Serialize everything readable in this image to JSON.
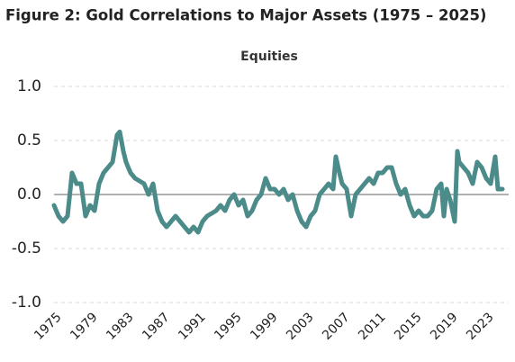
{
  "chart_data": {
    "type": "line",
    "title": "Figure 2: Gold Correlations to Major Assets (1975 – 2025)",
    "subtitle": "Equities",
    "x": [
      1975,
      1975.5,
      1976,
      1976.5,
      1977,
      1977.5,
      1978,
      1978.5,
      1979,
      1979.5,
      1980,
      1980.5,
      1981,
      1981.5,
      1982,
      1982.3,
      1982.7,
      1983,
      1983.5,
      1984,
      1985,
      1985.5,
      1986,
      1986.5,
      1987,
      1987.5,
      1988,
      1988.5,
      1989,
      1989.5,
      1990,
      1990.5,
      1991,
      1991.5,
      1992,
      1993,
      1993.5,
      1994,
      1994.5,
      1995,
      1995.5,
      1996,
      1996.5,
      1997,
      1997.5,
      1998,
      1998.5,
      1999,
      1999.5,
      2000,
      2000.5,
      2001,
      2001.5,
      2002,
      2002.5,
      2003,
      2003.5,
      2004,
      2004.5,
      2005,
      2005.5,
      2006,
      2006.3,
      2006.7,
      2007,
      2007.5,
      2008,
      2008.5,
      2009,
      2009.5,
      2010,
      2010.5,
      2011,
      2011.5,
      2012,
      2012.5,
      2013,
      2013.5,
      2014,
      2014.5,
      2015,
      2015.5,
      2016,
      2016.5,
      2017,
      2017.5,
      2018,
      2018.3,
      2018.6,
      2019,
      2019.5,
      2019.8,
      2020,
      2020.5,
      2021,
      2021.5,
      2022,
      2022.5,
      2023,
      2023.5,
      2024,
      2024.3,
      2024.8
    ],
    "series": [
      {
        "color": "#4b8b8a",
        "values": [
          -0.1,
          -0.2,
          -0.25,
          -0.2,
          0.2,
          0.1,
          0.1,
          -0.2,
          -0.1,
          -0.15,
          0.1,
          0.2,
          0.25,
          0.3,
          0.55,
          0.58,
          0.4,
          0.3,
          0.2,
          0.15,
          0.1,
          0.0,
          0.1,
          -0.15,
          -0.25,
          -0.3,
          -0.25,
          -0.2,
          -0.25,
          -0.3,
          -0.35,
          -0.3,
          -0.35,
          -0.25,
          -0.2,
          -0.15,
          -0.1,
          -0.15,
          -0.05,
          0.0,
          -0.1,
          -0.05,
          -0.2,
          -0.15,
          -0.05,
          0.0,
          0.15,
          0.05,
          0.05,
          0.0,
          0.05,
          -0.05,
          0.0,
          -0.15,
          -0.25,
          -0.3,
          -0.2,
          -0.15,
          0.0,
          0.05,
          0.1,
          0.05,
          0.35,
          0.2,
          0.1,
          0.05,
          -0.2,
          0.0,
          0.05,
          0.1,
          0.15,
          0.1,
          0.2,
          0.2,
          0.25,
          0.25,
          0.1,
          0.0,
          0.05,
          -0.1,
          -0.2,
          -0.15,
          -0.2,
          -0.2,
          -0.15,
          0.05,
          0.1,
          -0.2,
          0.05,
          -0.05,
          -0.25,
          0.4,
          0.3,
          0.25,
          0.2,
          0.1,
          0.3,
          0.25,
          0.15,
          0.1,
          0.35,
          0.05,
          0.05
        ]
      }
    ],
    "xlim": [
      1975,
      2025.5
    ],
    "xticks": [
      1975,
      1979,
      1983,
      1987,
      1991,
      1995,
      1999,
      2003,
      2007,
      2011,
      2015,
      2019,
      2023
    ],
    "ylim": [
      -1.0,
      1.0
    ],
    "yticks": [
      {
        "value": 1.0,
        "label": "1.0"
      },
      {
        "value": 0.5,
        "label": "0.5"
      },
      {
        "value": 0.0,
        "label": "0.0"
      },
      {
        "value": -0.5,
        "label": "-0.5"
      },
      {
        "value": -1.0,
        "label": "-1.0"
      }
    ],
    "grid": true
  }
}
